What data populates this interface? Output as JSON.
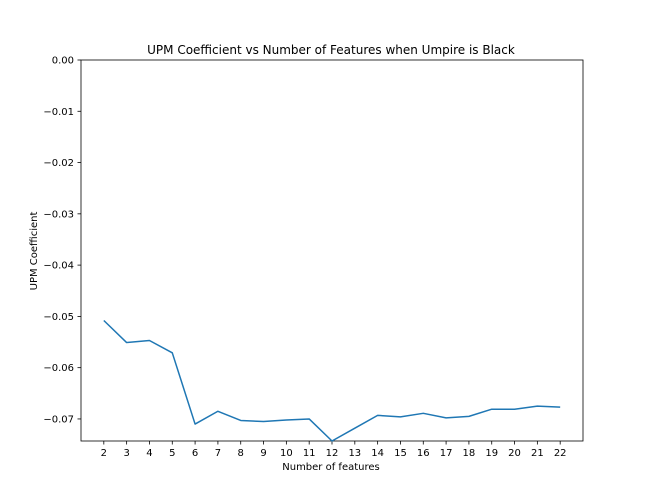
{
  "chart_data": {
    "type": "line",
    "title": "UPM Coefficient vs Number of Features when Umpire is Black",
    "xlabel": "Number of features",
    "ylabel": "UPM Coefficient",
    "xlim": [
      1,
      23
    ],
    "ylim": [
      -0.0743,
      0.0
    ],
    "grid": false,
    "x_ticks": [
      "2",
      "3",
      "4",
      "5",
      "6",
      "7",
      "8",
      "9",
      "10",
      "11",
      "12",
      "13",
      "14",
      "15",
      "16",
      "17",
      "18",
      "19",
      "20",
      "21",
      "22"
    ],
    "y_ticks": [
      "0.00",
      "−0.01",
      "−0.02",
      "−0.03",
      "−0.04",
      "−0.05",
      "−0.06",
      "−0.07"
    ],
    "y_tick_values": [
      0.0,
      -0.01,
      -0.02,
      -0.03,
      -0.04,
      -0.05,
      -0.06,
      -0.07
    ],
    "series": [
      {
        "color": "#1f77b4",
        "x": [
          2,
          3,
          4,
          5,
          6,
          7,
          8,
          9,
          10,
          11,
          12,
          13,
          14,
          15,
          16,
          17,
          18,
          19,
          20,
          21,
          22
        ],
        "y": [
          -0.0508,
          -0.0551,
          -0.0547,
          -0.0571,
          -0.071,
          -0.0685,
          -0.0703,
          -0.0705,
          -0.0702,
          -0.07,
          -0.0743,
          -0.0718,
          -0.0693,
          -0.0696,
          -0.0689,
          -0.0698,
          -0.0695,
          -0.0681,
          -0.0681,
          -0.0675,
          -0.0677
        ]
      }
    ]
  }
}
